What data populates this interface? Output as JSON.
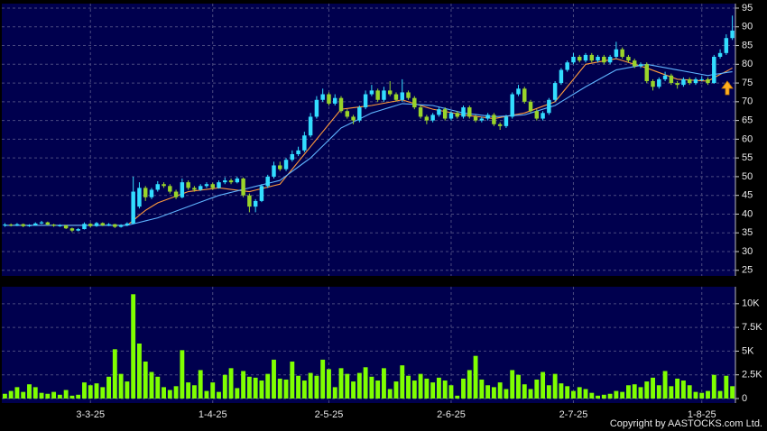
{
  "chart_data": {
    "type": "candlestick",
    "categories": [
      null,
      null,
      null,
      null,
      null,
      null,
      null,
      null,
      null,
      null,
      null,
      null,
      null,
      null,
      "3-3-25",
      null,
      null,
      null,
      null,
      null,
      null,
      null,
      null,
      null,
      null,
      null,
      null,
      null,
      null,
      null,
      null,
      null,
      null,
      null,
      "1-4-25",
      null,
      null,
      null,
      null,
      null,
      null,
      null,
      null,
      null,
      null,
      null,
      null,
      null,
      null,
      null,
      null,
      null,
      null,
      "2-5-25",
      null,
      null,
      null,
      null,
      null,
      null,
      null,
      null,
      null,
      null,
      null,
      null,
      null,
      null,
      null,
      null,
      null,
      null,
      null,
      "2-6-25",
      null,
      null,
      null,
      null,
      null,
      null,
      null,
      null,
      null,
      null,
      null,
      null,
      null,
      null,
      null,
      null,
      null,
      null,
      null,
      "2-7-25",
      null,
      null,
      null,
      null,
      null,
      null,
      null,
      null,
      null,
      null,
      null,
      null,
      null,
      null,
      null,
      null,
      null,
      null,
      null,
      null,
      "1-8-25",
      null,
      null,
      null,
      null,
      null
    ],
    "ohlc": [
      [
        37.0,
        37.6,
        36.6,
        37.2
      ],
      [
        37.2,
        37.5,
        36.7,
        37.0
      ],
      [
        37.0,
        37.6,
        36.8,
        37.3
      ],
      [
        37.3,
        37.5,
        36.5,
        36.8
      ],
      [
        36.8,
        37.3,
        36.6,
        37.0
      ],
      [
        37.0,
        37.8,
        36.9,
        37.5
      ],
      [
        37.5,
        38.2,
        37.3,
        37.8
      ],
      [
        37.8,
        38.0,
        37.0,
        37.2
      ],
      [
        37.2,
        37.4,
        36.6,
        36.9
      ],
      [
        36.9,
        37.3,
        36.6,
        37.0
      ],
      [
        37.0,
        37.1,
        36.0,
        36.2
      ],
      [
        36.2,
        36.4,
        35.2,
        35.6
      ],
      [
        35.6,
        36.3,
        35.4,
        36.0
      ],
      [
        36.0,
        37.8,
        35.9,
        37.4
      ],
      [
        37.4,
        37.6,
        36.5,
        36.8
      ],
      [
        36.8,
        37.9,
        36.6,
        37.6
      ],
      [
        37.6,
        37.8,
        36.8,
        37.0
      ],
      [
        37.0,
        37.6,
        36.8,
        37.3
      ],
      [
        37.3,
        37.4,
        36.3,
        36.6
      ],
      [
        36.6,
        37.3,
        36.4,
        37.0
      ],
      [
        37.0,
        37.8,
        36.8,
        37.5
      ],
      [
        37.5,
        50.0,
        37.3,
        46.0
      ],
      [
        42.0,
        48.5,
        41.5,
        47.0
      ],
      [
        47.0,
        47.5,
        43.5,
        44.5
      ],
      [
        44.5,
        47.0,
        44.0,
        46.5
      ],
      [
        46.5,
        48.8,
        46.0,
        48.0
      ],
      [
        48.0,
        48.5,
        47.0,
        47.5
      ],
      [
        47.5,
        48.0,
        45.5,
        46.0
      ],
      [
        46.0,
        46.5,
        44.0,
        44.5
      ],
      [
        44.5,
        49.5,
        44.2,
        48.5
      ],
      [
        48.5,
        49.0,
        46.5,
        47.0
      ],
      [
        47.0,
        47.5,
        46.0,
        46.5
      ],
      [
        46.5,
        48.0,
        46.2,
        47.5
      ],
      [
        47.5,
        48.5,
        47.0,
        48.0
      ],
      [
        48.0,
        48.4,
        46.5,
        47.0
      ],
      [
        47.0,
        49.0,
        46.8,
        48.5
      ],
      [
        48.5,
        49.8,
        48.0,
        49.0
      ],
      [
        49.0,
        49.5,
        48.0,
        48.5
      ],
      [
        48.5,
        50.0,
        48.2,
        49.5
      ],
      [
        49.5,
        49.8,
        44.5,
        45.0
      ],
      [
        45.0,
        45.5,
        40.5,
        42.0
      ],
      [
        42.0,
        44.0,
        40.5,
        43.5
      ],
      [
        43.5,
        48.0,
        43.2,
        47.5
      ],
      [
        47.5,
        50.5,
        47.0,
        50.0
      ],
      [
        50.0,
        54.0,
        49.5,
        53.0
      ],
      [
        53.0,
        54.0,
        51.5,
        52.0
      ],
      [
        52.0,
        55.0,
        51.5,
        54.5
      ],
      [
        54.5,
        57.0,
        54.0,
        56.0
      ],
      [
        56.0,
        58.0,
        55.5,
        57.0
      ],
      [
        57.0,
        62.0,
        56.5,
        61.0
      ],
      [
        61.0,
        67.0,
        60.5,
        66.0
      ],
      [
        66.0,
        71.5,
        65.5,
        70.5
      ],
      [
        70.5,
        73.5,
        70.0,
        72.0
      ],
      [
        72.0,
        72.5,
        69.0,
        69.5
      ],
      [
        69.5,
        72.0,
        69.0,
        71.0
      ],
      [
        71.0,
        71.5,
        67.0,
        67.5
      ],
      [
        67.5,
        68.0,
        65.5,
        66.0
      ],
      [
        66.0,
        66.5,
        64.0,
        65.0
      ],
      [
        65.0,
        69.0,
        64.5,
        68.5
      ],
      [
        68.5,
        73.0,
        68.0,
        72.0
      ],
      [
        72.0,
        74.5,
        71.5,
        73.0
      ],
      [
        73.0,
        73.5,
        70.0,
        70.5
      ],
      [
        70.5,
        74.0,
        70.0,
        73.0
      ],
      [
        73.0,
        75.5,
        71.5,
        72.0
      ],
      [
        72.0,
        72.5,
        70.0,
        70.5
      ],
      [
        70.5,
        76.0,
        70.0,
        72.5
      ],
      [
        72.5,
        73.0,
        70.5,
        71.0
      ],
      [
        71.0,
        71.5,
        68.0,
        68.5
      ],
      [
        68.5,
        69.0,
        65.5,
        66.0
      ],
      [
        66.0,
        66.5,
        64.0,
        65.0
      ],
      [
        65.0,
        67.0,
        64.5,
        66.5
      ],
      [
        66.5,
        68.5,
        66.0,
        68.0
      ],
      [
        68.0,
        68.5,
        65.0,
        65.5
      ],
      [
        65.5,
        67.5,
        65.0,
        67.0
      ],
      [
        67.0,
        67.5,
        65.5,
        66.0
      ],
      [
        66.0,
        69.0,
        65.5,
        68.5
      ],
      [
        68.5,
        69.0,
        65.5,
        66.0
      ],
      [
        66.0,
        66.5,
        64.5,
        65.0
      ],
      [
        65.0,
        66.0,
        64.5,
        65.5
      ],
      [
        65.5,
        67.0,
        65.0,
        66.5
      ],
      [
        66.5,
        67.0,
        63.5,
        64.0
      ],
      [
        64.0,
        64.5,
        62.5,
        63.5
      ],
      [
        63.5,
        66.5,
        63.0,
        66.0
      ],
      [
        66.0,
        72.5,
        65.5,
        72.0
      ],
      [
        72.0,
        74.5,
        71.5,
        73.5
      ],
      [
        73.5,
        74.0,
        69.5,
        70.0
      ],
      [
        70.0,
        70.5,
        67.0,
        67.5
      ],
      [
        67.5,
        68.0,
        65.0,
        65.5
      ],
      [
        65.5,
        67.5,
        65.0,
        67.0
      ],
      [
        67.0,
        71.0,
        66.5,
        70.5
      ],
      [
        70.5,
        75.5,
        70.0,
        75.0
      ],
      [
        75.0,
        79.0,
        74.5,
        78.5
      ],
      [
        78.5,
        81.0,
        78.0,
        80.5
      ],
      [
        80.5,
        83.0,
        80.0,
        82.0
      ],
      [
        82.0,
        82.5,
        80.5,
        81.0
      ],
      [
        81.0,
        83.0,
        80.5,
        82.5
      ],
      [
        82.5,
        83.0,
        80.5,
        81.0
      ],
      [
        81.0,
        82.5,
        80.5,
        82.0
      ],
      [
        82.0,
        82.5,
        80.0,
        80.5
      ],
      [
        80.5,
        82.5,
        80.0,
        82.0
      ],
      [
        82.0,
        86.0,
        81.5,
        84.0
      ],
      [
        84.0,
        84.5,
        81.5,
        82.0
      ],
      [
        82.0,
        82.5,
        80.5,
        81.0
      ],
      [
        81.0,
        81.5,
        79.0,
        79.5
      ],
      [
        79.5,
        80.5,
        79.0,
        80.0
      ],
      [
        80.0,
        80.5,
        75.0,
        75.5
      ],
      [
        75.5,
        76.0,
        73.0,
        74.0
      ],
      [
        74.0,
        76.5,
        73.5,
        76.0
      ],
      [
        76.0,
        78.0,
        75.5,
        77.0
      ],
      [
        77.0,
        77.5,
        74.5,
        75.0
      ],
      [
        75.0,
        75.5,
        73.5,
        74.5
      ],
      [
        74.5,
        76.5,
        74.0,
        76.0
      ],
      [
        76.0,
        76.5,
        74.5,
        75.0
      ],
      [
        75.0,
        76.5,
        74.5,
        76.0
      ],
      [
        76.0,
        76.8,
        75.5,
        76.0
      ],
      [
        76.0,
        76.5,
        74.5,
        75.0
      ],
      [
        75.0,
        82.5,
        74.8,
        82.0
      ],
      [
        82.0,
        84.0,
        81.5,
        83.0
      ],
      [
        83.0,
        88.0,
        82.5,
        87.0
      ],
      [
        87.0,
        93.0,
        86.5,
        89.0
      ]
    ],
    "up_color": "#33ddff",
    "down_color": "#99d42a",
    "series": [
      {
        "color": "#ff9a3c",
        "values": [
          37,
          37,
          37,
          37,
          37,
          37,
          37,
          37,
          37,
          37,
          37,
          37,
          37,
          37,
          37,
          37,
          37,
          37,
          37,
          37,
          37,
          38.3,
          39.7,
          41,
          42,
          43,
          43.6,
          44.2,
          44.8,
          45.4,
          46,
          46.2,
          46.4,
          46.6,
          46.8,
          47,
          46.8,
          46.6,
          46.4,
          46.2,
          46,
          46.4,
          46.8,
          47.2,
          47.6,
          48,
          50,
          52,
          54,
          56,
          58,
          60,
          62,
          64,
          66,
          68,
          68.2,
          68.4,
          68.6,
          68.8,
          69,
          69.3,
          69.6,
          69.9,
          70.2,
          70.5,
          70,
          69.5,
          69,
          68.5,
          68,
          67.7,
          67.4,
          67.1,
          66.8,
          66.5,
          66.3,
          66.1,
          65.9,
          65.7,
          65.5,
          65.8,
          66.1,
          66.4,
          66.7,
          67,
          67.6,
          68.2,
          68.8,
          69.4,
          70,
          72,
          74,
          76,
          78,
          80,
          80.3,
          80.6,
          80.9,
          81.2,
          81.5,
          81,
          80.5,
          80,
          79.5,
          79,
          78.4,
          77.8,
          77.2,
          76.6,
          76,
          75.9,
          75.8,
          75.7,
          75.6,
          75.5,
          76.4,
          77.3,
          78.1,
          79
        ]
      },
      {
        "color": "#5fb4ff",
        "values": [
          37,
          37,
          37,
          37,
          37,
          37,
          37,
          37,
          37,
          37,
          37,
          37,
          37,
          37,
          37,
          37,
          37,
          37,
          37,
          37,
          37,
          37.4,
          37.8,
          38.2,
          38.6,
          39,
          39.6,
          40.2,
          40.8,
          41.4,
          42,
          42.6,
          43.2,
          43.8,
          44.4,
          45,
          45.4,
          45.8,
          46.2,
          46.6,
          47,
          47.4,
          47.8,
          48.2,
          48.6,
          49,
          50.2,
          51.4,
          52.6,
          53.8,
          55,
          56.6,
          58.2,
          59.8,
          61.4,
          63,
          63.8,
          64.6,
          65.4,
          66.2,
          67,
          67.5,
          68,
          68.5,
          69,
          69.5,
          69.4,
          69.3,
          69.2,
          69.1,
          69,
          68.6,
          68.2,
          67.8,
          67.4,
          67,
          66.8,
          66.6,
          66.4,
          66.2,
          66,
          66.1,
          66.2,
          66.3,
          66.4,
          66.5,
          67,
          67.5,
          68,
          68.5,
          69,
          70,
          71,
          72,
          73,
          74,
          74.9,
          75.8,
          76.7,
          77.6,
          78.5,
          78.8,
          79.1,
          79.4,
          79.7,
          80,
          79.7,
          79.4,
          79.1,
          78.8,
          78.5,
          78.2,
          77.9,
          77.6,
          77.3,
          77,
          77.3,
          77.5,
          77.8,
          78
        ]
      }
    ],
    "ylim": [
      23.5,
      96.2
    ],
    "yticks": [
      25,
      30,
      35,
      40,
      45,
      50,
      55,
      60,
      65,
      70,
      75,
      80,
      85,
      90,
      95
    ],
    "grid": true,
    "volume": {
      "color": "#7fff00",
      "values": [
        500,
        800,
        1200,
        700,
        1500,
        1200,
        600,
        500,
        700,
        400,
        900,
        300,
        400,
        1700,
        1400,
        1600,
        1200,
        2300,
        5200,
        2600,
        1800,
        11000,
        5800,
        3900,
        2800,
        2300,
        1200,
        900,
        1300,
        5100,
        1700,
        1400,
        3000,
        800,
        1700,
        700,
        2500,
        3200,
        1100,
        2900,
        2300,
        2200,
        1900,
        2600,
        4100,
        2100,
        2000,
        3900,
        2400,
        1900,
        2700,
        2400,
        4100,
        3100,
        1200,
        3200,
        2600,
        1800,
        2700,
        3300,
        2300,
        1900,
        3200,
        1000,
        1800,
        3500,
        2400,
        1900,
        2600,
        2100,
        1700,
        2200,
        1900,
        1400,
        300,
        2100,
        3000,
        4500,
        2000,
        1400,
        1200,
        1700,
        1000,
        3000,
        2500,
        1500,
        1000,
        2000,
        2800,
        1400,
        2600,
        1600,
        1300,
        800,
        1200,
        1000,
        600,
        300,
        400,
        500,
        800,
        700,
        1400,
        1500,
        1200,
        1800,
        2200,
        1400,
        2900,
        1300,
        2100,
        1900,
        1400,
        700,
        600,
        800,
        2500,
        800,
        2400,
        1300
      ],
      "ylim": [
        0,
        11600
      ],
      "yticks": [
        0,
        {
          "value": 2500,
          "label": "2.5K"
        },
        {
          "value": 5000,
          "label": "5K"
        },
        {
          "value": 7500,
          "label": "7.5K"
        },
        {
          "value": 10000,
          "label": "10K"
        }
      ]
    }
  },
  "copyright": "Copyright by AASTOCKS.com Ltd."
}
